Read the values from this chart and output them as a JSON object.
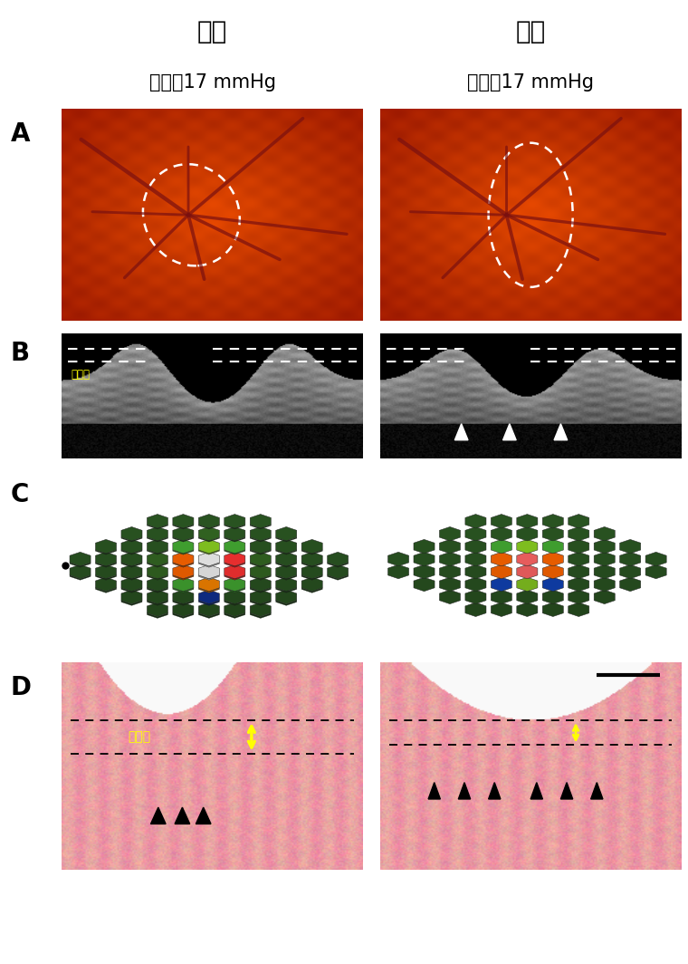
{
  "title_right": "右眼",
  "title_left": "左眼",
  "subtitle_right": "眼圧：17 mmHg",
  "subtitle_left": "眼圧：17 mmHg",
  "label_A": "A",
  "label_B": "B",
  "label_C": "C",
  "label_D": "D",
  "sieve_label": "筍状板",
  "background_color": "#ffffff",
  "title_fontsize": 20,
  "subtitle_fontsize": 15,
  "label_fontsize": 20
}
